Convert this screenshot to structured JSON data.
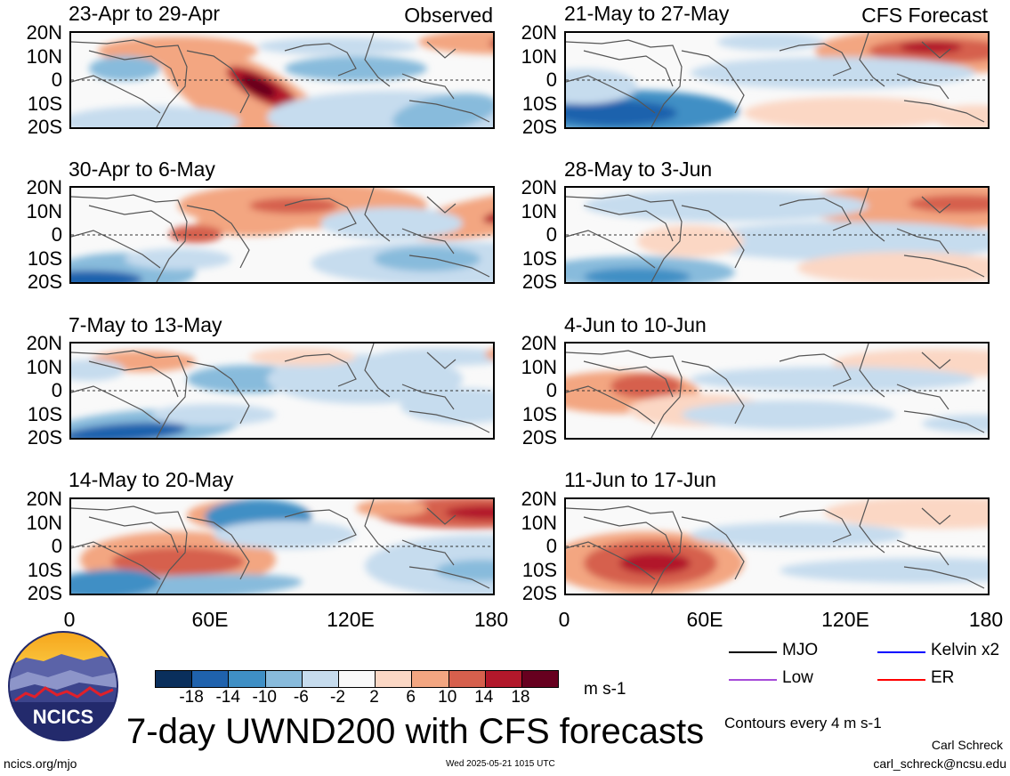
{
  "panels": [
    {
      "title": "23-Apr to 29-Apr",
      "corner": "Observed",
      "pattern": 0
    },
    {
      "title": "30-Apr to 6-May",
      "corner": "",
      "pattern": 1
    },
    {
      "title": "7-May to 13-May",
      "corner": "",
      "pattern": 2
    },
    {
      "title": "14-May to 20-May",
      "corner": "",
      "pattern": 3
    },
    {
      "title": "21-May to 27-May",
      "corner": "CFS Forecast",
      "pattern": 4
    },
    {
      "title": "28-May to 3-Jun",
      "corner": "",
      "pattern": 5
    },
    {
      "title": "4-Jun to 10-Jun",
      "corner": "",
      "pattern": 6
    },
    {
      "title": "11-Jun to 17-Jun",
      "corner": "",
      "pattern": 7
    }
  ],
  "lat_labels": [
    "20N",
    "10N",
    "0",
    "10S",
    "20S"
  ],
  "lon_labels": [
    "0",
    "60E",
    "120E",
    "180"
  ],
  "colorbar": {
    "colors": [
      "#0a2f5c",
      "#1f62ad",
      "#3f8fc5",
      "#88bbdc",
      "#c6dcee",
      "#f9f9f9",
      "#fbd7c4",
      "#f3a681",
      "#d6604d",
      "#b2182b",
      "#67001f"
    ],
    "ticks": [
      "-18",
      "-14",
      "-10",
      "-6",
      "-2",
      "2",
      "6",
      "10",
      "14",
      "18"
    ],
    "units": "m s-1"
  },
  "legend": [
    {
      "label": "MJO",
      "color": "#000000"
    },
    {
      "label": "Kelvin x2",
      "color": "#0000ff"
    },
    {
      "label": "Low",
      "color": "#a64bd9"
    },
    {
      "label": "ER",
      "color": "#ff0000"
    }
  ],
  "contours_note": "Contours every 4 m s-1",
  "main_title": "7-day UWND200 with CFS forecasts",
  "logo_text": "NCICS",
  "footer": {
    "url": "ncics.org/mjo",
    "timestamp": "Wed 2025-05-21 1015 UTC",
    "author": "Carl Schreck",
    "email": "carl_schreck@ncsu.edu"
  }
}
